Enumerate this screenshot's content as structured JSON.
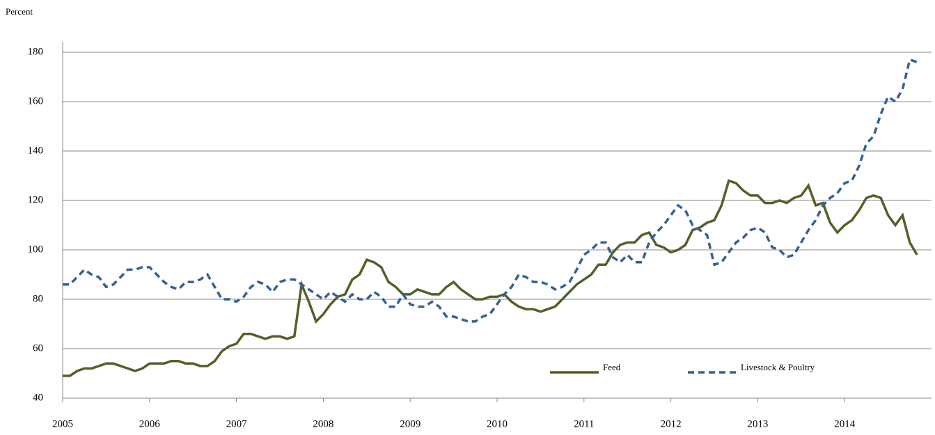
{
  "chart_data": {
    "type": "line",
    "y_axis_label": "Percent",
    "x": [
      2005,
      2005.083,
      2005.167,
      2005.25,
      2005.333,
      2005.417,
      2005.5,
      2005.583,
      2005.667,
      2005.75,
      2005.833,
      2005.917,
      2006,
      2006.083,
      2006.167,
      2006.25,
      2006.333,
      2006.417,
      2006.5,
      2006.583,
      2006.667,
      2006.75,
      2006.833,
      2006.917,
      2007,
      2007.083,
      2007.167,
      2007.25,
      2007.333,
      2007.417,
      2007.5,
      2007.583,
      2007.667,
      2007.75,
      2007.833,
      2007.917,
      2008,
      2008.083,
      2008.167,
      2008.25,
      2008.333,
      2008.417,
      2008.5,
      2008.583,
      2008.667,
      2008.75,
      2008.833,
      2008.917,
      2009,
      2009.083,
      2009.167,
      2009.25,
      2009.333,
      2009.417,
      2009.5,
      2009.583,
      2009.667,
      2009.75,
      2009.833,
      2009.917,
      2010,
      2010.083,
      2010.167,
      2010.25,
      2010.333,
      2010.417,
      2010.5,
      2010.583,
      2010.667,
      2010.75,
      2010.833,
      2010.917,
      2011,
      2011.083,
      2011.167,
      2011.25,
      2011.333,
      2011.417,
      2011.5,
      2011.583,
      2011.667,
      2011.75,
      2011.833,
      2011.917,
      2012,
      2012.083,
      2012.167,
      2012.25,
      2012.333,
      2012.417,
      2012.5,
      2012.583,
      2012.667,
      2012.75,
      2012.833,
      2012.917,
      2013,
      2013.083,
      2013.167,
      2013.25,
      2013.333,
      2013.417,
      2013.5,
      2013.583,
      2013.667,
      2013.75,
      2013.833,
      2013.917,
      2014,
      2014.083,
      2014.167,
      2014.25,
      2014.333,
      2014.417,
      2014.5,
      2014.583,
      2014.667,
      2014.75,
      2014.833
    ],
    "series": [
      {
        "name": "Feed",
        "color": "#4f6228",
        "dash": "solid",
        "values": [
          49,
          49,
          51,
          52,
          52,
          53,
          54,
          54,
          53,
          52,
          51,
          52,
          54,
          54,
          54,
          55,
          55,
          54,
          54,
          53,
          53,
          55,
          59,
          61,
          62,
          66,
          66,
          65,
          64,
          65,
          65,
          64,
          65,
          86,
          79,
          71,
          74,
          78,
          81,
          82,
          88,
          90,
          96,
          95,
          93,
          87,
          85,
          82,
          82,
          84,
          83,
          82,
          82,
          85,
          87,
          84,
          82,
          80,
          80,
          81,
          81,
          82,
          79,
          77,
          76,
          76,
          75,
          76,
          77,
          80,
          83,
          86,
          88,
          90,
          94,
          94,
          99,
          102,
          103,
          103,
          106,
          107,
          102,
          101,
          99,
          100,
          102,
          108,
          109,
          111,
          112,
          118,
          128,
          127,
          124,
          122,
          122,
          119,
          119,
          120,
          119,
          121,
          122,
          126,
          118,
          119,
          111,
          107,
          110,
          112,
          116,
          121,
          122,
          121,
          114,
          110,
          114,
          103,
          98
        ]
      },
      {
        "name": "Livestock & Poultry",
        "color": "#376092",
        "dash": "dashed",
        "values": [
          86,
          86,
          89,
          92,
          90,
          89,
          85,
          86,
          89,
          92,
          92,
          93,
          93,
          90,
          87,
          85,
          84,
          87,
          87,
          88,
          90,
          85,
          80,
          80,
          79,
          81,
          85,
          87,
          86,
          83,
          87,
          88,
          88,
          86,
          84,
          82,
          80,
          83,
          81,
          79,
          82,
          80,
          80,
          83,
          81,
          77,
          77,
          82,
          78,
          77,
          77,
          79,
          77,
          73,
          73,
          72,
          71,
          71,
          73,
          74,
          78,
          82,
          85,
          90,
          89,
          87,
          87,
          86,
          84,
          85,
          87,
          92,
          98,
          100,
          103,
          103,
          97,
          95,
          98,
          95,
          95,
          103,
          107,
          110,
          114,
          118,
          116,
          110,
          108,
          106,
          94,
          95,
          99,
          103,
          105,
          108,
          109,
          107,
          101,
          100,
          97,
          98,
          103,
          108,
          112,
          118,
          121,
          123,
          127,
          128,
          134,
          143,
          146,
          155,
          162,
          160,
          165,
          177,
          176
        ]
      }
    ],
    "xlim": [
      2005,
      2015
    ],
    "xticks": [
      2005,
      2006,
      2007,
      2008,
      2009,
      2010,
      2011,
      2012,
      2013,
      2014
    ],
    "ylim": [
      40,
      180
    ],
    "yticks": [
      40,
      60,
      80,
      100,
      120,
      140,
      160,
      180
    ],
    "grid": true,
    "legend": "lower right"
  }
}
